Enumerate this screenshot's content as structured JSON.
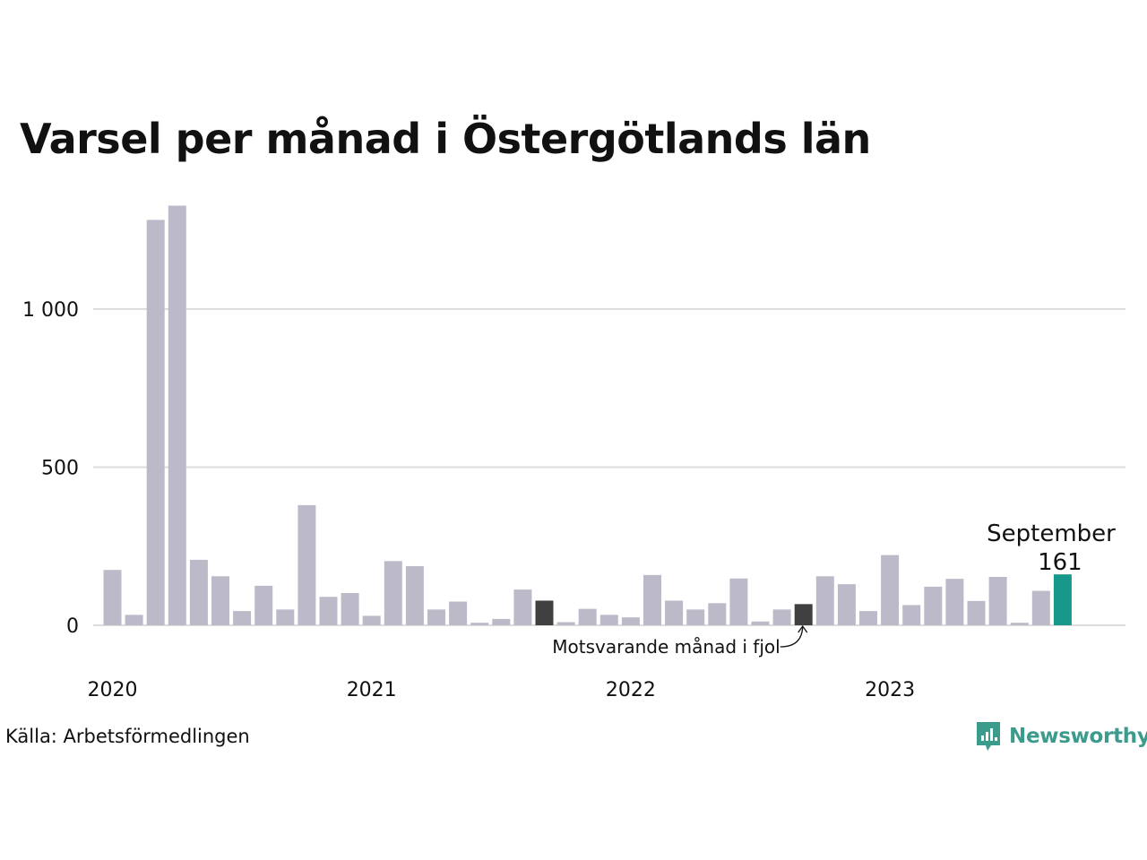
{
  "chart_data": {
    "type": "bar",
    "title": "Varsel per månad i Östergötlands län",
    "xlabel": "",
    "ylabel": "",
    "ylim": [
      0,
      1350
    ],
    "yticks": [
      0,
      500,
      1000
    ],
    "ytick_labels": [
      "0",
      "500",
      "1 000"
    ],
    "x_year_labels": [
      "2020",
      "2021",
      "2022",
      "2023"
    ],
    "grid": true,
    "legend": "none",
    "months": [
      "2020-01",
      "2020-02",
      "2020-03",
      "2020-04",
      "2020-05",
      "2020-06",
      "2020-07",
      "2020-08",
      "2020-09",
      "2020-10",
      "2020-11",
      "2020-12",
      "2021-01",
      "2021-02",
      "2021-03",
      "2021-04",
      "2021-05",
      "2021-06",
      "2021-07",
      "2021-08",
      "2021-09",
      "2021-10",
      "2021-11",
      "2021-12",
      "2022-01",
      "2022-02",
      "2022-03",
      "2022-04",
      "2022-05",
      "2022-06",
      "2022-07",
      "2022-08",
      "2022-09",
      "2022-10",
      "2022-11",
      "2022-12",
      "2023-01",
      "2023-02",
      "2023-03",
      "2023-04",
      "2023-05",
      "2023-06",
      "2023-07",
      "2023-08",
      "2023-09"
    ],
    "values": [
      175,
      33,
      1282,
      1327,
      207,
      155,
      45,
      125,
      50,
      380,
      90,
      102,
      30,
      203,
      187,
      50,
      75,
      8,
      20,
      113,
      78,
      10,
      52,
      33,
      25,
      159,
      78,
      50,
      70,
      148,
      12,
      50,
      67,
      155,
      130,
      45,
      222,
      64,
      122,
      147,
      77,
      153,
      8,
      109,
      161
    ],
    "highlight_previous_year": [
      "2021-09",
      "2022-09"
    ],
    "highlight_current": "2023-09",
    "colors": {
      "default": "#bcbac8",
      "previous_year": "#404040",
      "current": "#17988b",
      "grid": "#dddddd"
    },
    "annotations": {
      "current_month_label": "September",
      "current_value_label": "161",
      "previous_year_label": "Motsvarande månad i fjol"
    }
  },
  "source": "Källa: Arbetsförmedlingen",
  "brand": {
    "name": "Newsworthy",
    "icon": "bar-chart-speech-bubble-icon",
    "color": "#3b9b8c"
  }
}
